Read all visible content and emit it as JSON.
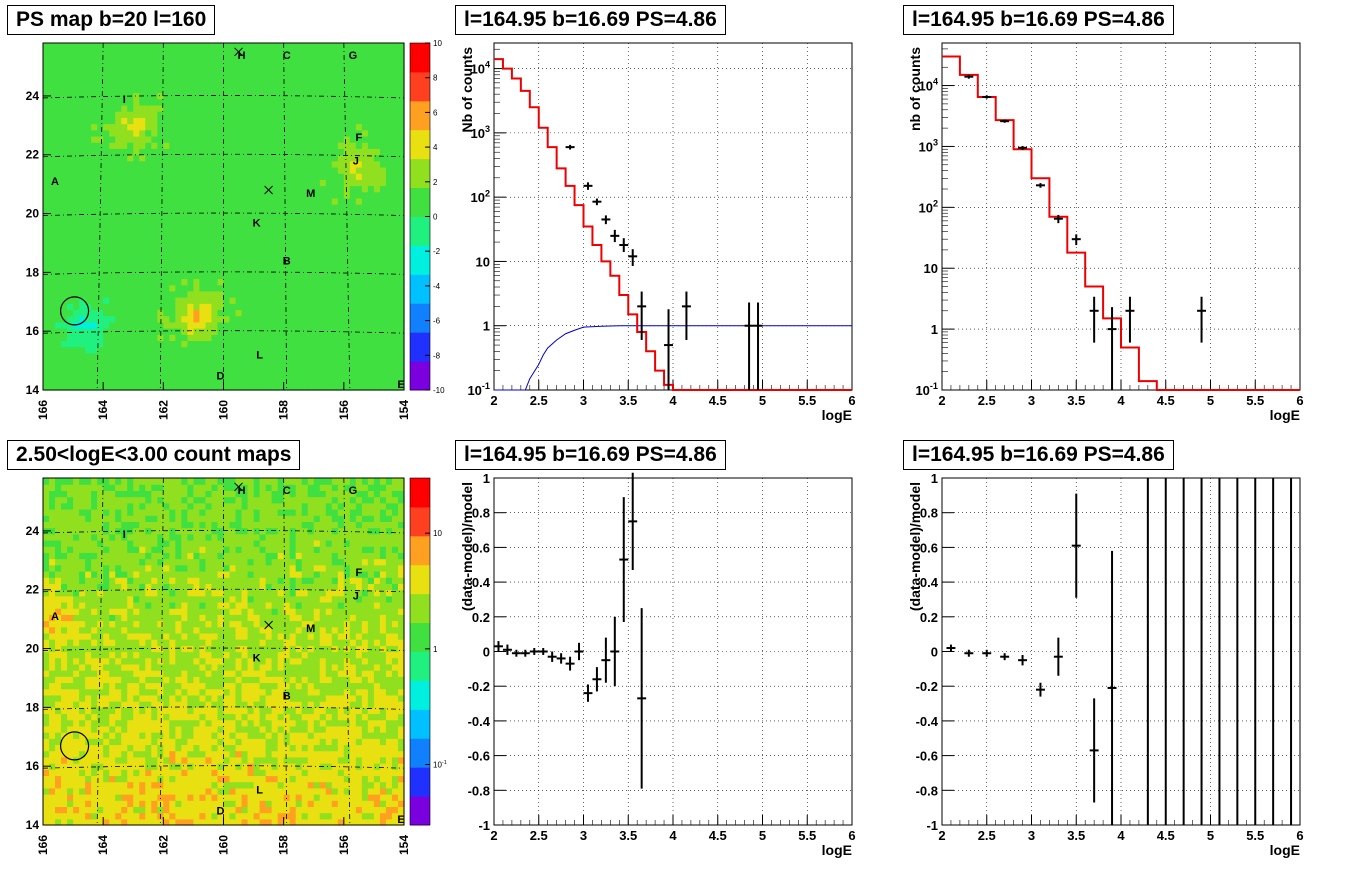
{
  "chart_data": [
    {
      "id": "ps_map",
      "type": "heatmap",
      "title": "PS map b=20 l=160",
      "xlim": [
        166,
        154
      ],
      "ylim": [
        14,
        25.8
      ],
      "xticks": [
        "166",
        "164",
        "162",
        "160",
        "158",
        "156",
        "154"
      ],
      "yticks": [
        "14",
        "16",
        "18",
        "20",
        "22",
        "24"
      ],
      "zticks": [
        "10",
        "8",
        "6",
        "4",
        "2",
        "0",
        "-2",
        "-4",
        "-6",
        "-8",
        "-10"
      ],
      "zlim": [
        -10,
        10
      ],
      "palette": [
        "#7a00e0",
        "#2030ff",
        "#1080ff",
        "#00c0ff",
        "#00f0e0",
        "#20f080",
        "#40e040",
        "#90e020",
        "#e8e010",
        "#ffa020",
        "#ff4020",
        "#ff0000"
      ],
      "base_value": 1.0,
      "grid": "dashed",
      "markers": [
        {
          "label": "H",
          "l": 159.4,
          "b": 25.4
        },
        {
          "label": "C",
          "l": 157.9,
          "b": 25.4
        },
        {
          "label": "G",
          "l": 155.7,
          "b": 25.4
        },
        {
          "label": "I",
          "l": 163.3,
          "b": 23.9
        },
        {
          "label": "F",
          "l": 155.5,
          "b": 22.6
        },
        {
          "label": "J",
          "l": 155.6,
          "b": 21.8
        },
        {
          "label": "A",
          "l": 165.6,
          "b": 21.1
        },
        {
          "label": "M",
          "l": 157.1,
          "b": 20.7
        },
        {
          "label": "K",
          "l": 158.9,
          "b": 19.7
        },
        {
          "label": "B",
          "l": 157.9,
          "b": 18.4
        },
        {
          "label": "L",
          "l": 158.8,
          "b": 15.2
        },
        {
          "label": "D",
          "l": 160.1,
          "b": 14.5
        },
        {
          "label": "E",
          "l": 154.1,
          "b": 14.2
        }
      ],
      "crosses": [
        {
          "l": 159.5,
          "b": 25.5
        },
        {
          "l": 158.5,
          "b": 20.8
        }
      ],
      "circle": {
        "l": 164.95,
        "b": 16.69
      },
      "hotspots": [
        {
          "l": 164.6,
          "b": 16.2,
          "v": -3
        },
        {
          "l": 160.9,
          "b": 16.5,
          "v": 4
        },
        {
          "l": 163.0,
          "b": 23.0,
          "v": 3
        },
        {
          "l": 155.5,
          "b": 21.5,
          "v": 3
        }
      ]
    },
    {
      "id": "count_map",
      "type": "heatmap",
      "title": "2.50<logE<3.00 count maps",
      "xlim": [
        166,
        154
      ],
      "ylim": [
        14,
        25.8
      ],
      "xticks": [
        "166",
        "164",
        "162",
        "160",
        "158",
        "156",
        "154"
      ],
      "yticks": [
        "14",
        "16",
        "18",
        "20",
        "22",
        "24"
      ],
      "zticks": [
        "10",
        "1",
        "10^-1"
      ],
      "zlim": [
        0.03,
        30
      ],
      "zscale": "log",
      "palette": [
        "#7a00e0",
        "#2030ff",
        "#1080ff",
        "#00c0ff",
        "#00f0e0",
        "#20f080",
        "#40e040",
        "#90e020",
        "#e8e010",
        "#ffa020",
        "#ff4020",
        "#ff0000"
      ],
      "grid": "dashed",
      "markers": [
        {
          "label": "H",
          "l": 159.4,
          "b": 25.4
        },
        {
          "label": "C",
          "l": 157.9,
          "b": 25.4
        },
        {
          "label": "G",
          "l": 155.7,
          "b": 25.4
        },
        {
          "label": "I",
          "l": 163.3,
          "b": 23.9
        },
        {
          "label": "F",
          "l": 155.5,
          "b": 22.6
        },
        {
          "label": "J",
          "l": 155.6,
          "b": 21.8
        },
        {
          "label": "A",
          "l": 165.6,
          "b": 21.1
        },
        {
          "label": "M",
          "l": 157.1,
          "b": 20.7
        },
        {
          "label": "K",
          "l": 158.9,
          "b": 19.7
        },
        {
          "label": "B",
          "l": 157.9,
          "b": 18.4
        },
        {
          "label": "L",
          "l": 158.8,
          "b": 15.2
        },
        {
          "label": "D",
          "l": 160.1,
          "b": 14.5
        },
        {
          "label": "E",
          "l": 154.1,
          "b": 14.2
        }
      ],
      "crosses": [
        {
          "l": 159.5,
          "b": 25.5
        },
        {
          "l": 158.5,
          "b": 20.8
        }
      ],
      "circle": {
        "l": 164.95,
        "b": 16.69
      }
    },
    {
      "id": "spectrum_fine",
      "type": "line",
      "title": "l=164.95 b=16.69 PS=4.86",
      "xlabel": "logE",
      "ylabel": "Nb of counts",
      "xlim": [
        2,
        6
      ],
      "ylim": [
        0.1,
        25000
      ],
      "yscale": "log",
      "xticks": [
        "2",
        "2.5",
        "3",
        "3.5",
        "4",
        "4.5",
        "5",
        "5.5",
        "6"
      ],
      "yticks": [
        {
          "v": 0.1,
          "t": "10^-1"
        },
        {
          "v": 1,
          "t": "1"
        },
        {
          "v": 10,
          "t": "10"
        },
        {
          "v": 100,
          "t": "10^2"
        },
        {
          "v": 1000,
          "t": "10^3"
        },
        {
          "v": 10000,
          "t": "10^4"
        }
      ],
      "grid": true,
      "bin_edges": [
        2.0,
        2.1,
        2.2,
        2.3,
        2.4,
        2.5,
        2.6,
        2.7,
        2.8,
        2.9,
        3.0,
        3.1,
        3.2,
        3.3,
        3.4,
        3.5,
        3.6,
        3.7,
        3.8,
        3.9,
        4.0,
        4.1,
        4.2,
        6.0
      ],
      "model": [
        14000,
        10000,
        7000,
        4500,
        2500,
        1200,
        600,
        280,
        150,
        75,
        35,
        18,
        10,
        6,
        3,
        1.5,
        0.8,
        0.4,
        0.2,
        0.12,
        0.1,
        0.1,
        0.1
      ],
      "ratio_curve": {
        "x": [
          2.0,
          2.35,
          2.4,
          2.5,
          2.55,
          2.6,
          2.7,
          2.8,
          2.9,
          3.0,
          3.2,
          3.4,
          3.6,
          6.0
        ],
        "y": [
          0.1,
          0.1,
          0.15,
          0.25,
          0.35,
          0.45,
          0.6,
          0.75,
          0.85,
          0.95,
          0.98,
          1,
          1,
          1
        ]
      },
      "points": [
        {
          "x": 2.85,
          "y": 600,
          "lo": 550,
          "hi": 650
        },
        {
          "x": 3.05,
          "y": 150,
          "lo": 130,
          "hi": 170
        },
        {
          "x": 3.15,
          "y": 85,
          "lo": 75,
          "hi": 95
        },
        {
          "x": 3.25,
          "y": 45,
          "lo": 38,
          "hi": 52
        },
        {
          "x": 3.35,
          "y": 25,
          "lo": 20,
          "hi": 31
        },
        {
          "x": 3.45,
          "y": 18,
          "lo": 14,
          "hi": 23
        },
        {
          "x": 3.55,
          "y": 12,
          "lo": 8.5,
          "hi": 15.5
        },
        {
          "x": 3.65,
          "y": 2,
          "lo": 0.6,
          "hi": 3.4
        },
        {
          "x": 3.95,
          "y": 0.5,
          "lo": 0.1,
          "hi": 1.8
        },
        {
          "x": 4.15,
          "y": 2,
          "lo": 0.6,
          "hi": 3.4
        },
        {
          "x": 4.85,
          "y": 1,
          "lo": 0.1,
          "hi": 2.3
        },
        {
          "x": 4.95,
          "y": 1,
          "lo": 0.1,
          "hi": 2.3
        }
      ]
    },
    {
      "id": "spectrum_coarse",
      "type": "line",
      "title": "l=164.95 b=16.69 PS=4.86",
      "xlabel": "logE",
      "ylabel": "nb of counts",
      "xlim": [
        2,
        6
      ],
      "ylim": [
        0.1,
        50000
      ],
      "yscale": "log",
      "xticks": [
        "2",
        "2.5",
        "3",
        "3.5",
        "4",
        "4.5",
        "5",
        "5.5",
        "6"
      ],
      "yticks": [
        {
          "v": 0.1,
          "t": "10^-1"
        },
        {
          "v": 1,
          "t": "1"
        },
        {
          "v": 10,
          "t": "10"
        },
        {
          "v": 100,
          "t": "10^2"
        },
        {
          "v": 1000,
          "t": "10^3"
        },
        {
          "v": 10000,
          "t": "10^4"
        }
      ],
      "grid": true,
      "bin_edges": [
        2.0,
        2.2,
        2.4,
        2.6,
        2.8,
        3.0,
        3.2,
        3.4,
        3.6,
        3.8,
        4.0,
        4.2,
        4.4,
        6.0
      ],
      "model": [
        30000,
        15000,
        6500,
        2700,
        900,
        300,
        70,
        18,
        5,
        1.5,
        0.5,
        0.14,
        0.1
      ],
      "points": [
        {
          "x": 2.3,
          "y": 14000,
          "lo": 13000,
          "hi": 15000
        },
        {
          "x": 2.5,
          "y": 6500,
          "lo": 6100,
          "hi": 6900
        },
        {
          "x": 2.7,
          "y": 2600,
          "lo": 2450,
          "hi": 2750
        },
        {
          "x": 2.9,
          "y": 950,
          "lo": 880,
          "hi": 1020
        },
        {
          "x": 3.1,
          "y": 230,
          "lo": 210,
          "hi": 250
        },
        {
          "x": 3.3,
          "y": 65,
          "lo": 55,
          "hi": 75
        },
        {
          "x": 3.5,
          "y": 30,
          "lo": 24,
          "hi": 36
        },
        {
          "x": 3.7,
          "y": 2,
          "lo": 0.6,
          "hi": 3.4
        },
        {
          "x": 3.9,
          "y": 1,
          "lo": 0.1,
          "hi": 2.3
        },
        {
          "x": 4.1,
          "y": 2,
          "lo": 0.6,
          "hi": 3.4
        },
        {
          "x": 4.9,
          "y": 2,
          "lo": 0.6,
          "hi": 3.4
        }
      ]
    },
    {
      "id": "ratio_fine",
      "type": "scatter",
      "title": "l=164.95 b=16.69 PS=4.86",
      "xlabel": "logE",
      "ylabel": "(data-model)/model",
      "xlim": [
        2,
        6
      ],
      "ylim": [
        -1,
        1
      ],
      "xticks": [
        "2",
        "2.5",
        "3",
        "3.5",
        "4",
        "4.5",
        "5",
        "5.5",
        "6"
      ],
      "yticks": [
        "-1",
        "-0.8",
        "-0.6",
        "-0.4",
        "-0.2",
        "0",
        "0.2",
        "0.4",
        "0.6",
        "0.8",
        "1"
      ],
      "grid": true,
      "points": [
        {
          "x": 2.05,
          "y": 0.03,
          "e": 0.03
        },
        {
          "x": 2.15,
          "y": 0.01,
          "e": 0.03
        },
        {
          "x": 2.25,
          "y": -0.01,
          "e": 0.02
        },
        {
          "x": 2.35,
          "y": -0.01,
          "e": 0.02
        },
        {
          "x": 2.45,
          "y": 0.0,
          "e": 0.02
        },
        {
          "x": 2.55,
          "y": 0.0,
          "e": 0.02
        },
        {
          "x": 2.65,
          "y": -0.03,
          "e": 0.03
        },
        {
          "x": 2.75,
          "y": -0.04,
          "e": 0.03
        },
        {
          "x": 2.85,
          "y": -0.07,
          "e": 0.04
        },
        {
          "x": 2.95,
          "y": 0.0,
          "e": 0.05
        },
        {
          "x": 3.05,
          "y": -0.24,
          "e": 0.05
        },
        {
          "x": 3.15,
          "y": -0.16,
          "e": 0.07
        },
        {
          "x": 3.25,
          "y": -0.05,
          "e": 0.13
        },
        {
          "x": 3.35,
          "y": 0.0,
          "e": 0.2
        },
        {
          "x": 3.45,
          "y": 0.53,
          "e": 0.36
        },
        {
          "x": 3.55,
          "y": 0.75,
          "e": 0.28
        },
        {
          "x": 3.65,
          "y": -0.27,
          "e": 0.52
        }
      ]
    },
    {
      "id": "ratio_coarse",
      "type": "scatter",
      "title": "l=164.95 b=16.69 PS=4.86",
      "xlabel": "logE",
      "ylabel": "(data-model)/model",
      "xlim": [
        2,
        6
      ],
      "ylim": [
        -1,
        1
      ],
      "xticks": [
        "2",
        "2.5",
        "3",
        "3.5",
        "4",
        "4.5",
        "5",
        "5.5",
        "6"
      ],
      "yticks": [
        "-1",
        "-0.8",
        "-0.6",
        "-0.4",
        "-0.2",
        "0",
        "0.2",
        "0.4",
        "0.6",
        "0.8",
        "1"
      ],
      "grid": true,
      "points": [
        {
          "x": 2.1,
          "y": 0.02,
          "e": 0.02
        },
        {
          "x": 2.3,
          "y": -0.01,
          "e": 0.02
        },
        {
          "x": 2.5,
          "y": -0.01,
          "e": 0.02
        },
        {
          "x": 2.7,
          "y": -0.03,
          "e": 0.02
        },
        {
          "x": 2.9,
          "y": -0.05,
          "e": 0.03
        },
        {
          "x": 3.1,
          "y": -0.22,
          "e": 0.04
        },
        {
          "x": 3.3,
          "y": -0.03,
          "e": 0.11
        },
        {
          "x": 3.5,
          "y": 0.61,
          "e": 0.3
        },
        {
          "x": 3.7,
          "y": -0.57,
          "e": 0.3
        },
        {
          "x": 3.9,
          "y": -0.21,
          "e": 0.79
        }
      ],
      "full_bars_x": [
        4.3,
        4.5,
        4.7,
        4.9,
        5.1,
        5.3,
        5.5,
        5.7,
        5.9
      ]
    }
  ]
}
